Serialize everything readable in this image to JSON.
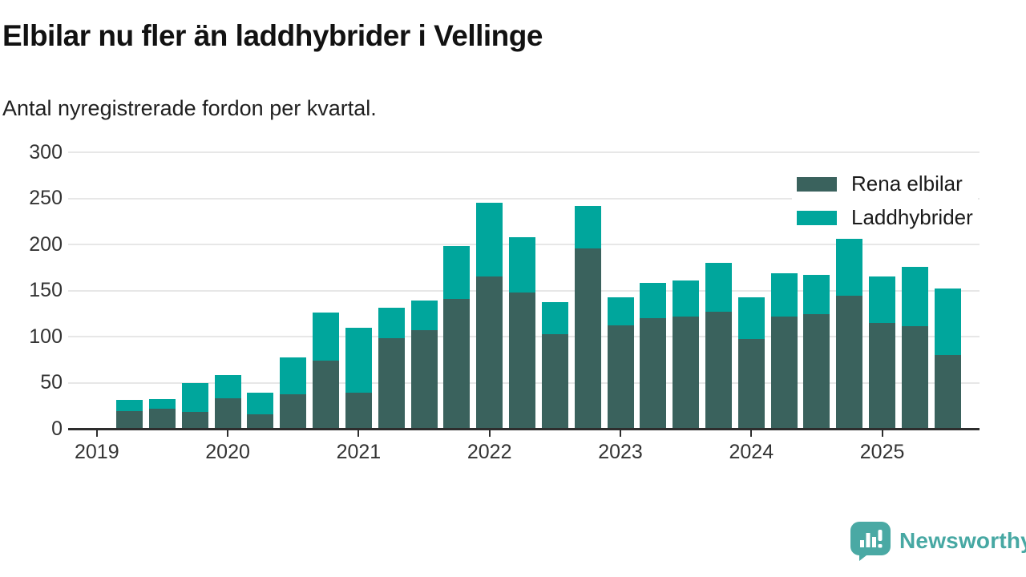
{
  "header": {
    "title": "Elbilar nu fler än laddhybrider i Vellinge",
    "subtitle": "Antal nyregistrerade fordon per kvartal."
  },
  "legend": {
    "items": [
      {
        "label": "Rena elbilar",
        "color": "#3a625d"
      },
      {
        "label": "Laddhybrider",
        "color": "#00a69c"
      }
    ]
  },
  "branding": {
    "name": "Newsworthy",
    "color": "#47a8a3"
  },
  "chart_data": {
    "type": "bar",
    "stacked": true,
    "title": "Elbilar nu fler än laddhybrider i Vellinge",
    "subtitle": "Antal nyregistrerade fordon per kvartal.",
    "categories": [
      "2019 Q2",
      "2019 Q3",
      "2019 Q4",
      "2020 Q1",
      "2020 Q2",
      "2020 Q3",
      "2020 Q4",
      "2021 Q1",
      "2021 Q2",
      "2021 Q3",
      "2021 Q4",
      "2022 Q1",
      "2022 Q2",
      "2022 Q3",
      "2022 Q4",
      "2023 Q1",
      "2023 Q2",
      "2023 Q3",
      "2023 Q4",
      "2024 Q1",
      "2024 Q2",
      "2024 Q3",
      "2024 Q4",
      "2025 Q1",
      "2025 Q2",
      "2025 Q3"
    ],
    "series": [
      {
        "name": "Rena elbilar",
        "color": "#3a625d",
        "values": [
          19,
          22,
          18,
          33,
          16,
          37,
          74,
          39,
          98,
          107,
          141,
          165,
          148,
          103,
          196,
          112,
          120,
          122,
          127,
          97,
          122,
          124,
          144,
          115,
          111,
          80
        ]
      },
      {
        "name": "Laddhybrider",
        "color": "#00a69c",
        "values": [
          12,
          10,
          32,
          25,
          23,
          40,
          52,
          71,
          33,
          32,
          57,
          80,
          60,
          34,
          46,
          31,
          38,
          39,
          53,
          46,
          47,
          43,
          62,
          50,
          65,
          72
        ]
      }
    ],
    "ylabel": "",
    "xlabel": "",
    "ylim": [
      0,
      300
    ],
    "yticks": [
      0,
      50,
      100,
      150,
      200,
      250,
      300
    ],
    "year_labels": [
      "2019",
      "2020",
      "2021",
      "2022",
      "2023",
      "2024",
      "2025"
    ],
    "grid": "horizontal",
    "legend_position": "top-right"
  }
}
